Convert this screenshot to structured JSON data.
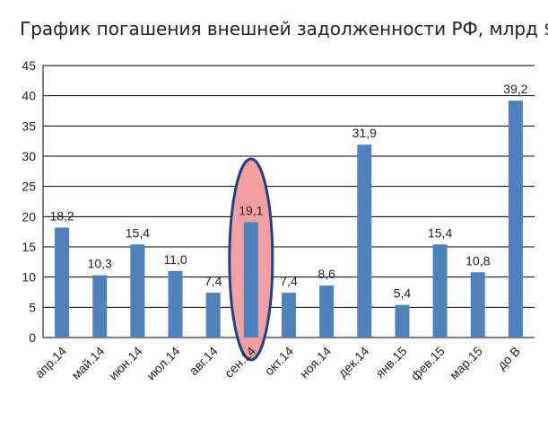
{
  "chart_data": {
    "type": "bar",
    "title": "График погашения внешней задолженности РФ, млрд $",
    "xlabel": "",
    "ylabel": "",
    "categories": [
      "апр.14",
      "май.14",
      "июн.14",
      "июл.14",
      "авг.14",
      "сен.14",
      "окт.14",
      "ноя.14",
      "дек.14",
      "янв.15",
      "фев.15",
      "мар.15",
      "до В"
    ],
    "value_labels": [
      "18,2",
      "10,3",
      "15,4",
      "11,0",
      "7,4",
      "19,1",
      "7,4",
      "8,6",
      "31,9",
      "5,4",
      "15,4",
      "10,8",
      "39,2"
    ],
    "values": [
      18.2,
      10.3,
      15.4,
      11.0,
      7.4,
      19.1,
      7.4,
      8.6,
      31.9,
      5.4,
      15.4,
      10.8,
      39.2
    ],
    "ylim": [
      0,
      45
    ],
    "yticks": [
      0,
      5,
      10,
      15,
      20,
      25,
      30,
      35,
      40,
      45
    ],
    "grid": true,
    "highlight_index": 5,
    "colors": {
      "bar": "#4f81bd",
      "highlight_fill": "#f4a0a0",
      "highlight_stroke": "#1f3f8f",
      "grid": "#000000",
      "text": "#222222"
    }
  }
}
